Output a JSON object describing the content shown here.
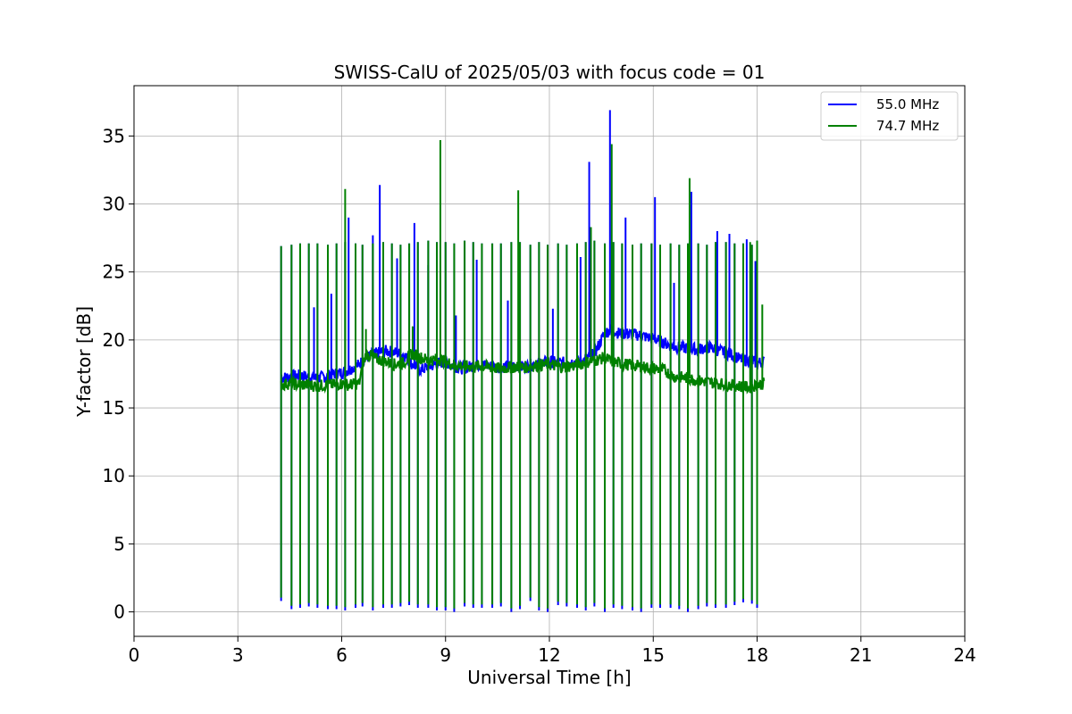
{
  "chart_data": {
    "type": "line",
    "title": "SWISS-CalU of 2025/05/03 with focus code = 01",
    "xlabel": "Universal Time [h]",
    "ylabel": "Y-factor [dB]",
    "xlim": [
      0,
      24
    ],
    "ylim": [
      -1.8,
      38.7
    ],
    "xticks": [
      0,
      3,
      6,
      9,
      12,
      15,
      18,
      21,
      24
    ],
    "yticks": [
      0,
      5,
      10,
      15,
      20,
      25,
      30,
      35
    ],
    "grid": true,
    "legend_position": "top-right",
    "calibration_pulses": {
      "x": [
        4.25,
        4.55,
        4.8,
        5.05,
        5.3,
        5.6,
        5.85,
        6.1,
        6.4,
        6.6,
        6.9,
        7.2,
        7.45,
        7.7,
        7.95,
        8.2,
        8.5,
        8.75,
        9.0,
        9.25,
        9.55,
        9.8,
        10.05,
        10.35,
        10.6,
        10.9,
        11.15,
        11.45,
        11.7,
        11.95,
        12.25,
        12.5,
        12.8,
        13.05,
        13.3,
        13.6,
        13.85,
        14.1,
        14.4,
        14.65,
        14.95,
        15.2,
        15.5,
        15.75,
        16.0,
        16.3,
        16.55,
        16.8,
        17.1,
        17.35,
        17.6,
        17.85,
        18.0
      ],
      "high": [
        26.9,
        27.0,
        27.1,
        27.1,
        27.1,
        27.0,
        27.1,
        27.2,
        27.1,
        27.0,
        27.1,
        27.2,
        27.1,
        27.0,
        27.1,
        27.2,
        27.3,
        27.2,
        27.2,
        27.1,
        27.3,
        27.2,
        27.1,
        27.1,
        27.1,
        27.2,
        27.2,
        27.0,
        27.2,
        27.0,
        27.1,
        27.0,
        27.1,
        27.2,
        27.3,
        27.1,
        27.2,
        27.1,
        27.0,
        27.1,
        27.1,
        27.0,
        27.1,
        27.0,
        27.1,
        27.1,
        27.0,
        27.2,
        27.2,
        27.1,
        27.1,
        27.0,
        27.3
      ],
      "low": [
        0.8,
        0.2,
        0.3,
        0.4,
        0.3,
        0.2,
        0.2,
        0.1,
        0.3,
        0.4,
        0.1,
        0.3,
        0.3,
        0.4,
        0.5,
        0.3,
        0.3,
        0.1,
        0.1,
        0.0,
        0.4,
        0.3,
        0.3,
        0.3,
        0.4,
        0.0,
        0.2,
        0.8,
        0.1,
        0.0,
        0.5,
        0.4,
        0.3,
        0.1,
        0.4,
        0.0,
        0.3,
        0.2,
        0.1,
        0.0,
        0.3,
        0.3,
        0.3,
        0.2,
        0.0,
        0.2,
        0.4,
        0.3,
        0.3,
        0.5,
        0.7,
        0.6,
        0.3
      ]
    },
    "series": [
      {
        "name": "55.0 MHz",
        "color": "#0000ff",
        "x": [
          4.25,
          4.5,
          4.8,
          5.0,
          5.3,
          5.5,
          5.8,
          6.0,
          6.2,
          6.5,
          6.7,
          7.0,
          7.3,
          7.5,
          7.8,
          8.0,
          8.3,
          8.5,
          8.8,
          9.0,
          9.2,
          9.5,
          9.8,
          10.0,
          10.5,
          11.0,
          11.3,
          11.5,
          12.0,
          12.3,
          12.7,
          13.0,
          13.3,
          13.6,
          13.8,
          14.0,
          14.5,
          15.0,
          15.3,
          15.6,
          16.0,
          16.3,
          16.6,
          16.9,
          17.2,
          17.5,
          17.8,
          18.0,
          18.2
        ],
        "values": [
          17.2,
          17.3,
          17.4,
          17.3,
          17.2,
          17.3,
          17.5,
          17.6,
          17.8,
          18.2,
          18.7,
          19.0,
          19.2,
          19.1,
          18.9,
          18.3,
          17.8,
          18.0,
          18.3,
          18.4,
          18.1,
          17.9,
          18.1,
          18.2,
          18.0,
          18.1,
          18.0,
          18.2,
          18.4,
          18.3,
          18.4,
          18.5,
          19.0,
          20.5,
          20.8,
          20.5,
          20.4,
          20.1,
          19.8,
          19.5,
          19.4,
          19.3,
          19.5,
          19.2,
          19.0,
          18.6,
          18.5,
          18.3,
          18.4
        ],
        "spikes": {
          "x": [
            4.8,
            5.2,
            5.7,
            6.2,
            6.9,
            7.1,
            7.6,
            8.1,
            8.5,
            9.3,
            9.9,
            10.8,
            12.1,
            12.9,
            13.15,
            13.75,
            14.2,
            15.05,
            15.6,
            16.1,
            16.85,
            17.2,
            17.7,
            17.95
          ],
          "y": [
            23.6,
            22.4,
            23.4,
            29.0,
            27.7,
            31.4,
            26.0,
            28.6,
            25.5,
            21.8,
            25.9,
            22.9,
            22.3,
            26.1,
            33.1,
            36.9,
            29.0,
            30.5,
            24.2,
            30.9,
            28.0,
            27.8,
            27.4,
            25.8
          ]
        }
      },
      {
        "name": "74.7 MHz",
        "color": "#008000",
        "x": [
          4.25,
          4.5,
          4.8,
          5.0,
          5.3,
          5.5,
          5.8,
          6.0,
          6.2,
          6.5,
          6.7,
          7.0,
          7.3,
          7.5,
          7.8,
          8.0,
          8.3,
          8.5,
          8.8,
          9.0,
          9.2,
          9.5,
          9.8,
          10.0,
          10.5,
          11.0,
          11.3,
          11.5,
          12.0,
          12.3,
          12.7,
          13.0,
          13.3,
          13.6,
          13.8,
          14.0,
          14.5,
          15.0,
          15.3,
          15.6,
          16.0,
          16.3,
          16.6,
          16.9,
          17.2,
          17.5,
          17.8,
          18.0,
          18.2
        ],
        "values": [
          16.7,
          16.8,
          16.7,
          16.7,
          16.6,
          16.7,
          16.7,
          16.8,
          16.7,
          16.8,
          19.0,
          18.6,
          18.4,
          18.2,
          18.3,
          19.0,
          18.7,
          18.5,
          18.6,
          18.4,
          18.2,
          18.1,
          18.0,
          18.1,
          17.9,
          18.0,
          18.0,
          18.1,
          18.2,
          18.0,
          18.1,
          18.3,
          18.5,
          18.7,
          18.4,
          18.3,
          18.1,
          17.9,
          17.8,
          17.3,
          17.2,
          17.0,
          16.9,
          16.8,
          16.7,
          16.6,
          16.5,
          16.7,
          16.8
        ],
        "spikes": {
          "x": [
            6.1,
            6.7,
            8.05,
            8.85,
            11.1,
            13.2,
            13.8,
            16.05,
            17.8,
            18.15
          ],
          "y": [
            31.1,
            20.8,
            21.0,
            34.7,
            31.0,
            28.3,
            34.4,
            31.9,
            27.2,
            22.6
          ]
        }
      }
    ]
  }
}
